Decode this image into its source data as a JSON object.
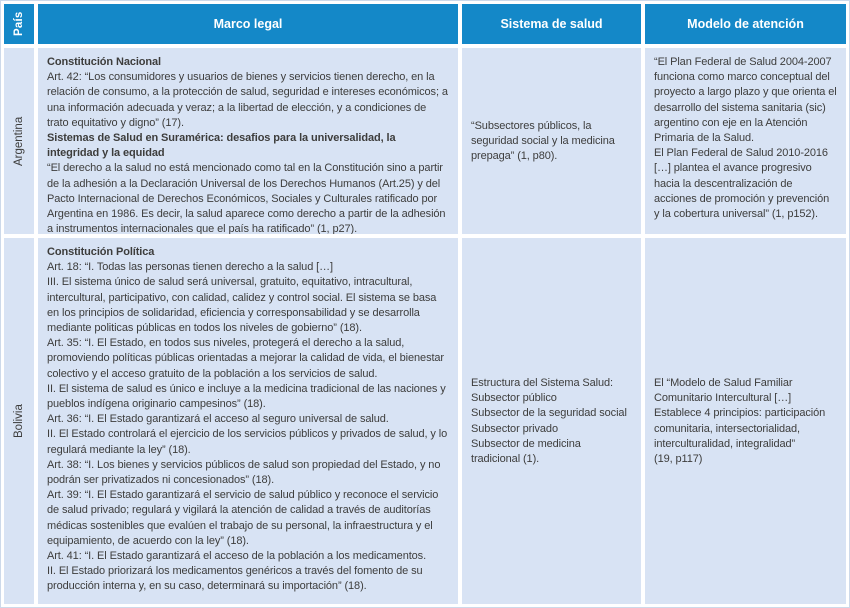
{
  "colors": {
    "header_bg": "#1488c8",
    "cell_bg": "#d8e3f4",
    "body_text": "#3d3d3c",
    "header_text": "#ffffff"
  },
  "header": {
    "pais": "País",
    "marco_legal": "Marco legal",
    "sistema_salud": "Sistema de salud",
    "modelo_atencion": "Modelo de atención"
  },
  "argentina": {
    "country": "Argentina",
    "marco_heading1": "Constitución Nacional",
    "marco_para1": "Art. 42: “Los consumidores y usuarios de bienes y servicios tienen derecho, en la relación de consumo, a la protección de salud, seguridad e intereses económicos; a una información adecuada y veraz; a la libertad de elección, y a condiciones de trato equitativo y digno” (17).",
    "marco_heading2": "Sistemas de Salud en Suramérica: desafios para la universalidad, la integridad y la equidad",
    "marco_para2": "“El derecho a la salud no está mencionado como tal en la Constitución sino a partir de la adhesión a la Declaración Universal de los Derechos Humanos (Art.25) y del Pacto Internacional de Derechos Económicos, Sociales y Culturales ratificado por Argentina en 1986. Es decir, la salud aparece como derecho a partir de la adhesión a instrumentos internacionales que el país ha ratificado” (1, p27).",
    "sistema": "“Subsectores públicos, la seguridad social y la medicina prepaga” (1, p80).",
    "modelo_para1": "“El Plan Federal de Salud 2004-2007 funciona como marco conceptual del proyecto a largo plazo y que orienta el desarrollo del sistema sanitaria (sic) argentino con eje en la Atención Primaria de la Salud.",
    "modelo_para2": "El Plan Federal de Salud 2010-2016 […] plantea el avance progresivo hacia la descentralización de acciones de promoción y prevención y la cobertura universal” (1, p152)."
  },
  "bolivia": {
    "country": "Bolivia",
    "marco_heading": "Constitución Política",
    "marco_paragraphs": [
      "Art. 18: “I. Todas las personas tienen derecho a la salud […]",
      "III. El sistema único de salud será universal, gratuito, equitativo, intracultural, intercultural, participativo, con calidad, calidez y control social. El sistema se basa en los principios de solidaridad, eficiencia y corresponsabilidad y se desarrolla mediante politicas públicas en todos los niveles de gobierno” (18).",
      "Art. 35: “I. El Estado, en todos sus niveles, protegerá el derecho a la salud, promoviendo políticas públicas orientadas a mejorar la calidad de vida, el bienestar colectivo y el acceso gratuito de la población a los servicios de salud.",
      "II. El sistema de salud es único e incluye a la medicina tradicional de las naciones y pueblos indígena originario campesinos” (18).",
      "Art. 36: “I. El Estado garantizará el acceso al seguro universal de salud.",
      "II. El Estado controlará el ejercicio de los servicios públicos y privados de salud, y lo regulará mediante la ley” (18).",
      "Art. 38: “I. Los bienes y servicios públicos de salud son propiedad del Estado, y no podrán ser privatizados ni concesionados” (18).",
      "Art. 39: “I. El Estado garantizará el servicio de salud público y reconoce el servicio de salud privado; regulará y vigilará la atención de calidad a través de auditorías médicas sostenibles que evalúen el trabajo de su personal, la infraestructura y el equipamiento, de acuerdo con la ley” (18).",
      "Art. 41: “I. El Estado garantizará el acceso de la población a los medicamentos.",
      "II. El Estado priorizará los medicamentos genéricos a través del fomento de su producción interna y, en su caso, determinará su importación” (18)."
    ],
    "sistema_lines": [
      "Estructura del Sistema Salud:",
      "Subsector público",
      "Subsector de la seguridad social",
      "Subsector privado",
      "Subsector de medicina tradicional (1)."
    ],
    "modelo_para1": "El “Modelo de Salud Familiar Comunitario Intercultural […] Establece 4 principios: participación comunitaria, intersectorialidad, interculturalidad, integralidad”",
    "modelo_para2": "(19, p117)"
  }
}
